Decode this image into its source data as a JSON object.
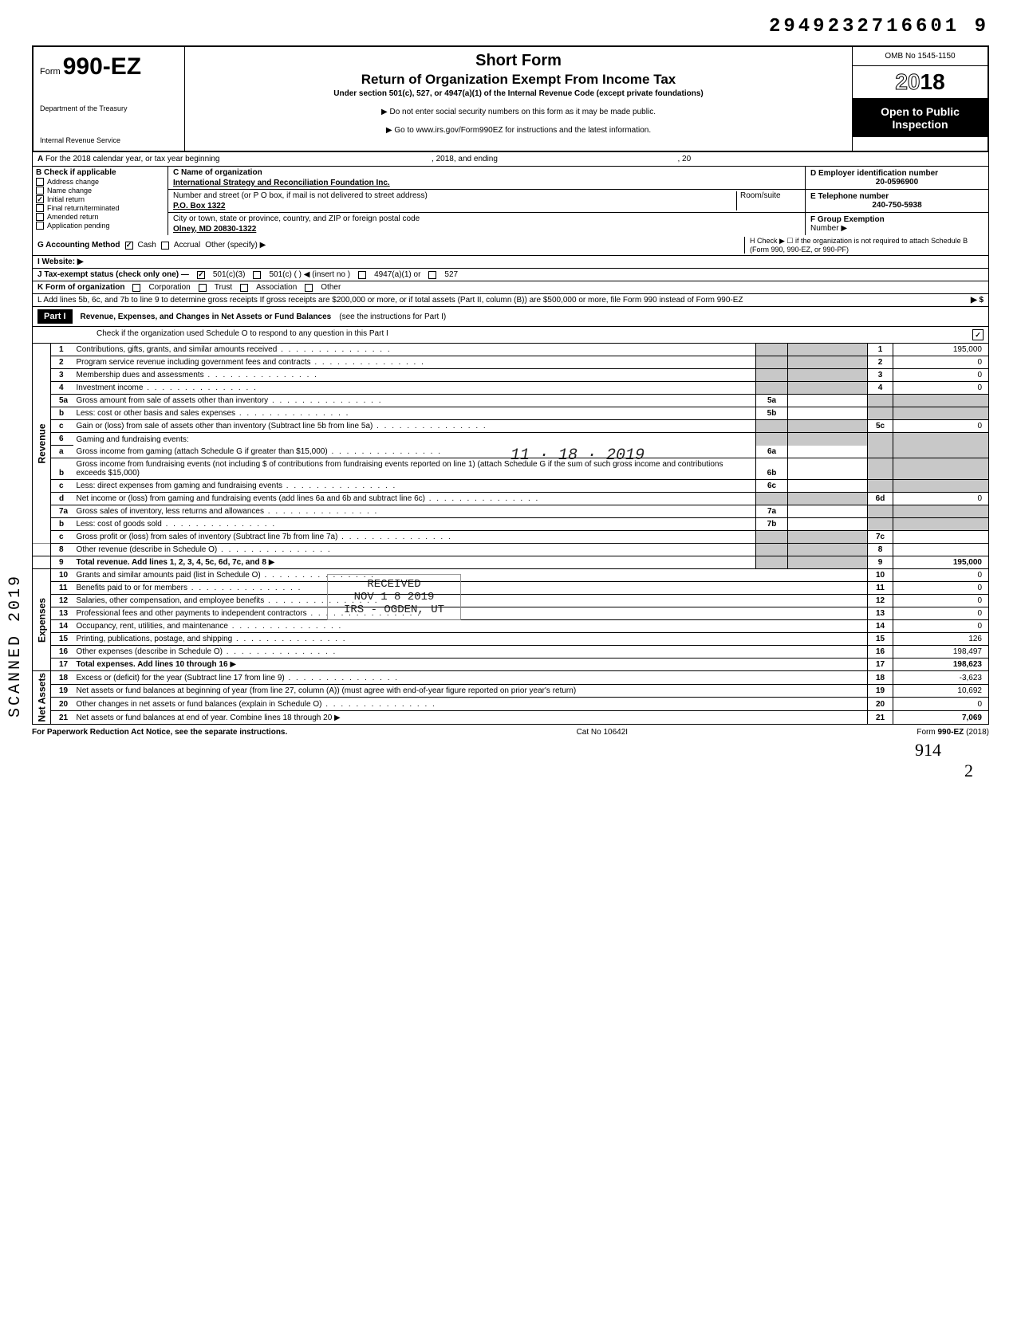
{
  "doc_id": "2949232716601  9",
  "form": {
    "prefix": "Form",
    "number": "990-EZ",
    "dept1": "Department of the Treasury",
    "dept2": "Internal Revenue Service"
  },
  "header": {
    "title1": "Short Form",
    "title2": "Return of Organization Exempt From Income Tax",
    "sub": "Under section 501(c), 527, or 4947(a)(1) of the Internal Revenue Code (except private foundations)",
    "note1": "▶ Do not enter social security numbers on this form as it may be made public.",
    "note2": "▶ Go to www.irs.gov/Form990EZ for instructions and the latest information.",
    "omb": "OMB No 1545-1150",
    "year_outline": "20",
    "year_bold": "18",
    "open": "Open to Public Inspection"
  },
  "row_a": {
    "label": "A",
    "text": "For the 2018 calendar year, or tax year beginning",
    "mid": ", 2018, and ending",
    "end": ", 20"
  },
  "col_b": {
    "hd": "B  Check if applicable",
    "items": [
      {
        "label": "Address change",
        "checked": false
      },
      {
        "label": "Name change",
        "checked": false
      },
      {
        "label": "Initial return",
        "checked": true
      },
      {
        "label": "Final return/terminated",
        "checked": false
      },
      {
        "label": "Amended return",
        "checked": false
      },
      {
        "label": "Application pending",
        "checked": false
      }
    ]
  },
  "col_c": {
    "name_lbl": "C  Name of organization",
    "name": "International Strategy and Reconciliation Foundation Inc.",
    "addr_lbl": "Number and street (or P O  box, if mail is not delivered to street address)",
    "room_lbl": "Room/suite",
    "addr": "P.O. Box 1322",
    "city_lbl": "City or town, state or province, country, and ZIP or foreign postal code",
    "city": "Olney, MD 20830-1322"
  },
  "col_d": {
    "ein_lbl": "D Employer identification number",
    "ein": "20-0596900",
    "tel_lbl": "E  Telephone number",
    "tel": "240-750-5938",
    "grp_lbl": "F  Group Exemption",
    "grp2": "Number  ▶"
  },
  "row_g": {
    "g": "G  Accounting Method",
    "cash": "Cash",
    "accr": "Accrual",
    "other": "Other (specify) ▶",
    "h": "H  Check ▶ ☐ if the organization is not required to attach Schedule B (Form 990, 990-EZ, or 990-PF)"
  },
  "row_i": {
    "label": "I  Website: ▶"
  },
  "row_j": {
    "label": "J  Tax-exempt status (check only one) —",
    "a": "501(c)(3)",
    "b": "501(c) (        ) ◀ (insert no )",
    "c": "4947(a)(1) or",
    "d": "527"
  },
  "row_k": {
    "label": "K  Form of organization",
    "a": "Corporation",
    "b": "Trust",
    "c": "Association",
    "d": "Other"
  },
  "row_l": {
    "text": "L  Add lines 5b, 6c, and 7b to line 9 to determine gross receipts  If gross receipts are $200,000 or more, or if total assets (Part II, column (B)) are $500,000 or more, file Form 990 instead of Form 990-EZ",
    "arrow": "▶   $"
  },
  "part1": {
    "tag": "Part I",
    "title": "Revenue, Expenses, and Changes in Net Assets or Fund Balances",
    "paren": "(see the instructions for Part I)",
    "check": "Check if the organization used Schedule O to respond to any question in this Part I",
    "checked": "✓"
  },
  "side_labels": {
    "rev": "Revenue",
    "exp": "Expenses",
    "net": "Net Assets"
  },
  "lines": {
    "l1": {
      "n": "1",
      "d": "Contributions, gifts, grants, and similar amounts received",
      "box": "1",
      "amt": "195,000"
    },
    "l2": {
      "n": "2",
      "d": "Program service revenue including government fees and contracts",
      "box": "2",
      "amt": "0"
    },
    "l3": {
      "n": "3",
      "d": "Membership dues and assessments",
      "box": "3",
      "amt": "0"
    },
    "l4": {
      "n": "4",
      "d": "Investment income",
      "box": "4",
      "amt": "0"
    },
    "l5a": {
      "n": "5a",
      "d": "Gross amount from sale of assets other than inventory",
      "ib": "5a"
    },
    "l5b": {
      "n": "b",
      "d": "Less: cost or other basis and sales expenses",
      "ib": "5b"
    },
    "l5c": {
      "n": "c",
      "d": "Gain or (loss) from sale of assets other than inventory (Subtract line 5b from line 5a)",
      "box": "5c",
      "amt": "0"
    },
    "l6": {
      "n": "6",
      "d": "Gaming and fundraising events:"
    },
    "l6a": {
      "n": "a",
      "d": "Gross income from gaming (attach Schedule G if greater than $15,000)",
      "ib": "6a"
    },
    "l6b": {
      "n": "b",
      "d": "Gross income from fundraising events (not including $                    of contributions from fundraising events reported on line 1) (attach Schedule G if the sum of such gross income and contributions exceeds $15,000)",
      "ib": "6b"
    },
    "l6c": {
      "n": "c",
      "d": "Less: direct expenses from gaming and fundraising events",
      "ib": "6c"
    },
    "l6d": {
      "n": "d",
      "d": "Net income or (loss) from gaming and fundraising events (add lines 6a and 6b and subtract line 6c)",
      "box": "6d",
      "amt": "0"
    },
    "l7a": {
      "n": "7a",
      "d": "Gross sales of inventory, less returns and allowances",
      "ib": "7a"
    },
    "l7b": {
      "n": "b",
      "d": "Less: cost of goods sold",
      "ib": "7b"
    },
    "l7c": {
      "n": "c",
      "d": "Gross profit or (loss) from sales of inventory (Subtract line 7b from line 7a)",
      "box": "7c",
      "amt": ""
    },
    "l8": {
      "n": "8",
      "d": "Other revenue (describe in Schedule O)",
      "box": "8",
      "amt": ""
    },
    "l9": {
      "n": "9",
      "d": "Total revenue. Add lines 1, 2, 3, 4, 5c, 6d, 7c, and 8",
      "box": "9",
      "amt": "195,000",
      "bold": true
    },
    "l10": {
      "n": "10",
      "d": "Grants and similar amounts paid (list in Schedule O)",
      "box": "10",
      "amt": "0"
    },
    "l11": {
      "n": "11",
      "d": "Benefits paid to or for members",
      "box": "11",
      "amt": "0"
    },
    "l12": {
      "n": "12",
      "d": "Salaries, other compensation, and employee benefits",
      "box": "12",
      "amt": "0"
    },
    "l13": {
      "n": "13",
      "d": "Professional fees and other payments to independent contractors",
      "box": "13",
      "amt": "0"
    },
    "l14": {
      "n": "14",
      "d": "Occupancy, rent, utilities, and maintenance",
      "box": "14",
      "amt": "0"
    },
    "l15": {
      "n": "15",
      "d": "Printing, publications, postage, and shipping",
      "box": "15",
      "amt": "126"
    },
    "l16": {
      "n": "16",
      "d": "Other expenses (describe in Schedule O)",
      "box": "16",
      "amt": "198,497"
    },
    "l17": {
      "n": "17",
      "d": "Total expenses. Add lines 10 through 16",
      "box": "17",
      "amt": "198,623",
      "bold": true
    },
    "l18": {
      "n": "18",
      "d": "Excess or (deficit) for the year (Subtract line 17 from line 9)",
      "box": "18",
      "amt": "-3,623"
    },
    "l19": {
      "n": "19",
      "d": "Net assets or fund balances at beginning of year (from line 27, column (A)) (must agree with end-of-year figure reported on prior year's return)",
      "box": "19",
      "amt": "10,692"
    },
    "l20": {
      "n": "20",
      "d": "Other changes in net assets or fund balances (explain in Schedule O)",
      "box": "20",
      "amt": "0"
    },
    "l21": {
      "n": "21",
      "d": "Net assets or fund balances at end of year. Combine lines 18 through 20",
      "box": "21",
      "amt": "7,069"
    }
  },
  "footer": {
    "left": "For Paperwork Reduction Act Notice, see the separate instructions.",
    "mid": "Cat No  10642I",
    "right": "Form 990-EZ (2018)"
  },
  "stamps": {
    "side": "SCANNED     2019",
    "date": "11 · 18 · 2019",
    "recv": "RECEIVED\nNOV 1 8 2019\nIRS - OGDEN, UT",
    "hand1": "914",
    "hand2": "2"
  },
  "colors": {
    "black": "#000000",
    "shade": "#c8c8c8",
    "bg": "#ffffff"
  }
}
